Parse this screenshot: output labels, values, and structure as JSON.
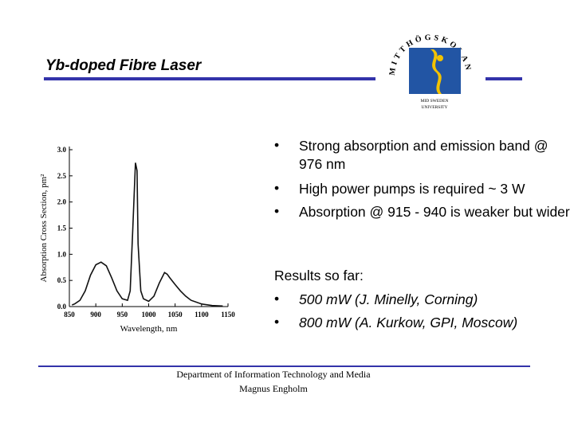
{
  "header": {
    "title": "Yb-doped Fibre Laser"
  },
  "logo": {
    "arc_text": "MITTHÖGSKOLAN",
    "line1": "MID SWEDEN",
    "line2": "UNIVERSITY"
  },
  "bullets": [
    "Strong absorption and emission band @ 976 nm",
    "High power pumps is required ~ 3 W",
    "Absorption @ 915 - 940 is weaker but wider"
  ],
  "results": {
    "heading": "Results so far:",
    "items": [
      "500 mW (J. Minelly, Corning)",
      "800 mW (A. Kurkow, GPI, Moscow)"
    ]
  },
  "footer": {
    "line1": "Department of Information Technology and Media",
    "line2": "Magnus Engholm"
  },
  "chart_data": {
    "type": "line",
    "x_label": "Wavelength, nm",
    "y_label": "Absorption Cross Section, pm²",
    "x": [
      855,
      860,
      870,
      880,
      890,
      900,
      910,
      920,
      930,
      940,
      950,
      960,
      965,
      970,
      975,
      978,
      980,
      985,
      990,
      1000,
      1010,
      1020,
      1030,
      1035,
      1040,
      1050,
      1060,
      1070,
      1080,
      1100,
      1120,
      1140
    ],
    "series": [
      {
        "color": "#111111",
        "values": [
          0.03,
          0.05,
          0.12,
          0.3,
          0.6,
          0.8,
          0.85,
          0.78,
          0.55,
          0.3,
          0.15,
          0.12,
          0.3,
          1.5,
          2.75,
          2.6,
          1.2,
          0.3,
          0.15,
          0.1,
          0.2,
          0.45,
          0.65,
          0.62,
          0.55,
          0.42,
          0.3,
          0.2,
          0.12,
          0.05,
          0.02,
          0.01
        ]
      }
    ],
    "xlim": [
      850,
      1150
    ],
    "ylim": [
      0,
      3
    ],
    "xticks": [
      850,
      900,
      950,
      1000,
      1050,
      1100,
      1150
    ],
    "yticks": [
      {
        "value": 0,
        "label": "0.0"
      },
      {
        "value": 0.5,
        "label": "0.5"
      },
      {
        "value": 1,
        "label": "1.0"
      },
      {
        "value": 1.5,
        "label": "1.5"
      },
      {
        "value": 2,
        "label": "2.0"
      },
      {
        "value": 2.5,
        "label": "2.5"
      },
      {
        "value": 3,
        "label": "3.0"
      }
    ]
  }
}
